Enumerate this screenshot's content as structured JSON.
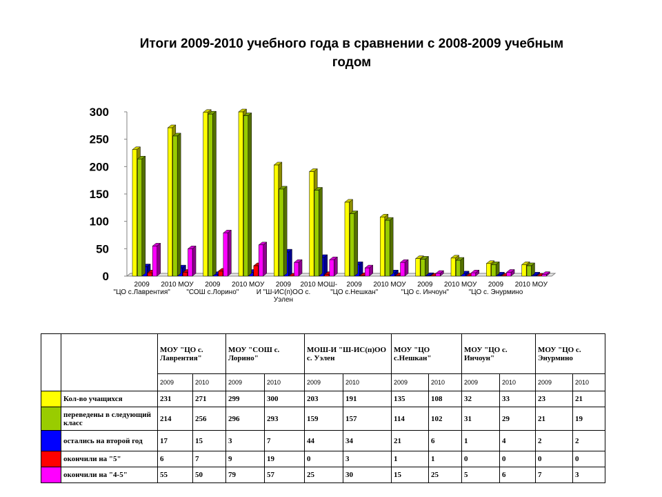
{
  "chart_data": {
    "type": "bar",
    "title": "Итоги 2009-2010 учебного года в сравнении с 2008-2009 учебным годом",
    "title_lines": [
      "Итоги 2009-2010 учебного года в сравнении с 2008-2009 учебным",
      "годом"
    ],
    "categories": [
      "2009 МОУ \"ЦО с.Лаврентия\"",
      "2010 МОУ \"ЦО с.Лаврентия\"",
      "2009 МОУ \"СОШ с.Лорино\"",
      "2010 МОУ \"СОШ с.Лорино\"",
      "2009 МОШ-И \"Ш-ИС(п)ОО с. Уэлен",
      "2010 МОШ-И \"Ш-ИС(п)ОО с. Уэлен",
      "2009 МОУ \"ЦО с.Нешкан\"",
      "2010 МОУ \"ЦО с.Нешкан\"",
      "2009 МОУ \"ЦО с. Инчоун\"",
      "2010 МОУ \"ЦО с. Инчоун\"",
      "2009 МОУ \"ЦО с. Энурмино",
      "2010 МОУ \"ЦО с. Энурмино"
    ],
    "x_tick_lines": [
      [
        "2009",
        "\"ЦО с.Лаврентия\""
      ],
      [
        "2010 МОУ"
      ],
      [
        "2009",
        "\"СОШ с.Лорино\""
      ],
      [
        "2010  МОУ"
      ],
      [
        "2009",
        "И \"Ш-ИС(п)ОО с.",
        "Уэлен"
      ],
      [
        "2010  МОШ-"
      ],
      [
        "2009",
        "\"ЦО с.Нешкан\""
      ],
      [
        "2010 МОУ"
      ],
      [
        "2009",
        "\"ЦО с. Инчоун\""
      ],
      [
        "2010 МОУ"
      ],
      [
        "2009",
        "\"ЦО с. Энурмино"
      ],
      [
        "2010  МОУ"
      ]
    ],
    "series": [
      {
        "name": "Кол-во учащихся",
        "color": "#FFFF00",
        "values": [
          231,
          271,
          299,
          300,
          203,
          191,
          135,
          108,
          32,
          33,
          23,
          21
        ]
      },
      {
        "name": "переведены в следующий класс",
        "color": "#99CC00",
        "values": [
          214,
          256,
          296,
          293,
          159,
          157,
          114,
          102,
          31,
          29,
          21,
          19
        ]
      },
      {
        "name": "остались на второй год",
        "color": "#0000FF",
        "values": [
          17,
          15,
          3,
          7,
          44,
          34,
          21,
          6,
          1,
          4,
          2,
          2
        ]
      },
      {
        "name": "окончили на \"5\"",
        "color": "#FF0000",
        "values": [
          6,
          7,
          9,
          19,
          0,
          3,
          1,
          1,
          0,
          0,
          0,
          0
        ]
      },
      {
        "name": "окончили на \"4-5\"",
        "color": "#FF00FF",
        "values": [
          55,
          50,
          79,
          57,
          25,
          30,
          15,
          25,
          5,
          6,
          7,
          3
        ]
      }
    ],
    "yticks": [
      "0",
      "50",
      "100",
      "150",
      "200",
      "250",
      "300"
    ],
    "ylim": [
      0,
      300
    ],
    "grid": false,
    "legend": "table below chart"
  },
  "table": {
    "schools": [
      "МОУ \"ЦО с. Лаврентия\"",
      "МОУ \"СОШ с. Лорино\"",
      "МОШ-И \"Ш-ИС(п)ОО с. Уэлен",
      "МОУ \"ЦО с.Нешкан\"",
      "МОУ \"ЦО с. Инчоун\"",
      "МОУ \"ЦО с. Энурмино"
    ],
    "years": [
      "2009",
      "2010",
      "2009",
      "2010",
      "2009",
      "2010",
      "2009",
      "2010",
      "2009",
      "2010",
      "2009",
      "2010"
    ],
    "rows": [
      {
        "label": "Кол-во учащихся",
        "color": "#FFFF00",
        "values": [
          "231",
          "271",
          "299",
          "300",
          "203",
          "191",
          "135",
          "108",
          "32",
          "33",
          "23",
          "21"
        ]
      },
      {
        "label": "переведены в следующий класс",
        "color": "#99CC00",
        "values": [
          "214",
          "256",
          "296",
          "293",
          "159",
          "157",
          "114",
          "102",
          "31",
          "29",
          "21",
          "19"
        ]
      },
      {
        "label": "остались на второй год",
        "color": "#0000FF",
        "values": [
          "17",
          "15",
          "3",
          "7",
          "44",
          "34",
          "21",
          "6",
          "1",
          "4",
          "2",
          "2"
        ]
      },
      {
        "label": "окончили на \"5\"",
        "color": "#FF0000",
        "values": [
          "6",
          "7",
          "9",
          "19",
          "0",
          "3",
          "1",
          "1",
          "0",
          "0",
          "0",
          "0"
        ]
      },
      {
        "label": "окончили на \"4-5\"",
        "color": "#FF00FF",
        "values": [
          "55",
          "50",
          "79",
          "57",
          "25",
          "30",
          "15",
          "25",
          "5",
          "6",
          "7",
          "3"
        ]
      }
    ]
  }
}
